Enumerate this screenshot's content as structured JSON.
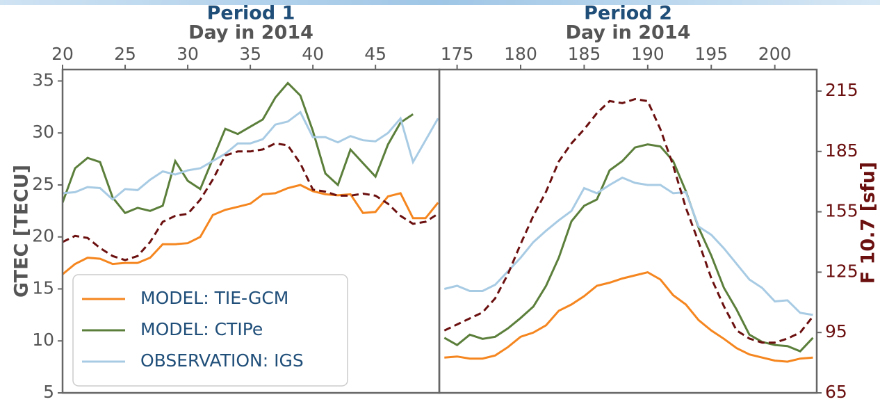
{
  "chart_data": [
    {
      "type": "line",
      "title": "Period 1",
      "xlabel": "Day in 2014",
      "ylabel": "GTEC [TECU]",
      "x": [
        20,
        21,
        22,
        23,
        24,
        25,
        26,
        27,
        28,
        29,
        30,
        31,
        32,
        33,
        34,
        35,
        36,
        37,
        38,
        39,
        40,
        41,
        42,
        43,
        44,
        45,
        46,
        47,
        48,
        49,
        50
      ],
      "series": [
        {
          "name": "MODEL: TIE-GCM",
          "color": "#f5861f",
          "values": [
            16.4,
            17.4,
            18.0,
            17.9,
            17.4,
            17.5,
            17.5,
            18.0,
            19.3,
            19.3,
            19.4,
            20.0,
            22.1,
            22.6,
            22.9,
            23.2,
            24.1,
            24.2,
            24.7,
            25.0,
            24.4,
            24.1,
            24.0,
            24.1,
            22.3,
            22.4,
            23.9,
            24.2,
            21.8,
            21.8,
            23.3
          ]
        },
        {
          "name": "MODEL: CTIPe",
          "color": "#5b7f3b",
          "values": [
            23.3,
            26.6,
            27.6,
            27.2,
            23.8,
            22.3,
            22.8,
            22.5,
            23.0,
            27.3,
            25.4,
            24.6,
            27.5,
            30.4,
            29.9,
            30.6,
            31.3,
            33.4,
            34.8,
            33.6,
            30.2,
            26.1,
            25.0,
            28.4,
            27.1,
            25.8,
            28.9,
            31.0,
            31.8,
            null,
            null
          ]
        },
        {
          "name": "OBSERVATION: IGS",
          "color": "#a8cbe4",
          "values": [
            24.2,
            24.3,
            24.8,
            24.7,
            23.6,
            24.6,
            24.5,
            25.5,
            26.3,
            26.0,
            26.4,
            26.6,
            27.3,
            28.0,
            29.0,
            29.0,
            29.4,
            30.8,
            31.1,
            32.0,
            29.6,
            29.6,
            29.1,
            29.7,
            29.3,
            29.2,
            30.0,
            31.4,
            27.2,
            29.3,
            31.4
          ]
        },
        {
          "color": "#6b0f0f",
          "axis": "y2",
          "dashed": true,
          "values": [
            140,
            143,
            142,
            137,
            133,
            131,
            133,
            140,
            150,
            153,
            154,
            161,
            171,
            183,
            185,
            185,
            186,
            189,
            188,
            179,
            166,
            165,
            163,
            163,
            164,
            163,
            159,
            153,
            149,
            150,
            154
          ]
        }
      ],
      "xlim": [
        20,
        50.1
      ],
      "xticks": [
        20,
        25,
        30,
        35,
        40,
        45
      ],
      "ylim": [
        5,
        36.1
      ],
      "yticks": [
        5,
        10,
        15,
        20,
        25,
        30,
        35
      ],
      "y2lim": [
        65,
        225.7
      ],
      "legend": "lower left"
    },
    {
      "type": "line",
      "title": "Period 2",
      "xlabel": "Day in 2014",
      "y2label": "F 10.7 [sfu]",
      "x": [
        174,
        175,
        176,
        177,
        178,
        179,
        180,
        181,
        182,
        183,
        184,
        185,
        186,
        187,
        188,
        189,
        190,
        191,
        192,
        193,
        194,
        195,
        196,
        197,
        198,
        199,
        200,
        201,
        202,
        203
      ],
      "series": [
        {
          "color": "#f5861f",
          "values": [
            8.4,
            8.5,
            8.3,
            8.3,
            8.6,
            9.4,
            10.4,
            10.8,
            11.5,
            12.9,
            13.5,
            14.3,
            15.3,
            15.6,
            16.0,
            16.3,
            16.6,
            15.9,
            14.4,
            13.5,
            12.0,
            11.0,
            10.2,
            9.3,
            8.7,
            8.4,
            8.1,
            8.0,
            8.3,
            8.4
          ]
        },
        {
          "color": "#5b7f3b",
          "values": [
            10.3,
            9.6,
            10.6,
            10.2,
            10.4,
            11.2,
            12.2,
            13.3,
            15.3,
            18.0,
            21.5,
            23.0,
            23.6,
            26.4,
            27.3,
            28.6,
            28.9,
            28.7,
            27.3,
            24.4,
            20.9,
            18.2,
            15.1,
            13.0,
            10.6,
            9.9,
            9.6,
            9.5,
            9.0,
            10.3
          ]
        },
        {
          "color": "#a8cbe4",
          "values": [
            15.0,
            15.3,
            14.8,
            14.8,
            15.4,
            16.7,
            18.0,
            19.5,
            20.6,
            21.6,
            22.5,
            24.7,
            24.2,
            25.0,
            25.7,
            25.2,
            25.0,
            25.0,
            24.2,
            24.3,
            21.0,
            20.2,
            18.9,
            17.4,
            15.9,
            15.1,
            13.8,
            13.9,
            12.7,
            12.5
          ]
        },
        {
          "color": "#6b0f0f",
          "axis": "y2",
          "dashed": true,
          "values": [
            96,
            99,
            102,
            105,
            112,
            124,
            139,
            153,
            165,
            180,
            189,
            196,
            204,
            210,
            209,
            211,
            210,
            196,
            178,
            157,
            140,
            122,
            108,
            96,
            92,
            90,
            90,
            92,
            95,
            103
          ]
        }
      ],
      "xlim": [
        173.6,
        203.3
      ],
      "xticks": [
        175,
        180,
        185,
        190,
        195,
        200
      ],
      "ylim": [
        5,
        36.1
      ],
      "y2lim": [
        65,
        225.7
      ],
      "y2ticks": [
        65,
        95,
        125,
        155,
        185,
        215
      ]
    }
  ]
}
